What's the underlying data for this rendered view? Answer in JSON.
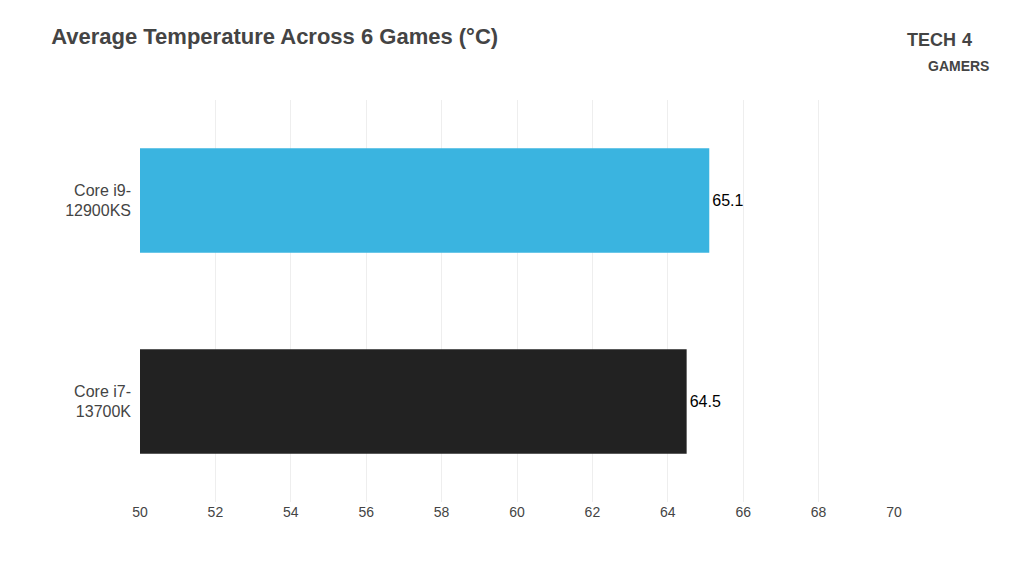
{
  "chart_data": {
    "type": "bar",
    "orientation": "horizontal",
    "title": "Average Temperature Across 6 Games (°C)",
    "categories": [
      "Core i9-\n12900KS",
      "Core i7-\n13700K"
    ],
    "values": [
      65.1,
      64.5
    ],
    "colors": [
      "#3ab4e0",
      "#222222"
    ],
    "data_labels": true,
    "xlim": [
      50,
      70
    ],
    "xticks": [
      50,
      52,
      54,
      56,
      58,
      60,
      62,
      64,
      66,
      68,
      70
    ],
    "grid": true,
    "annotations": [
      "TECH",
      "4",
      "GAMERS"
    ]
  }
}
